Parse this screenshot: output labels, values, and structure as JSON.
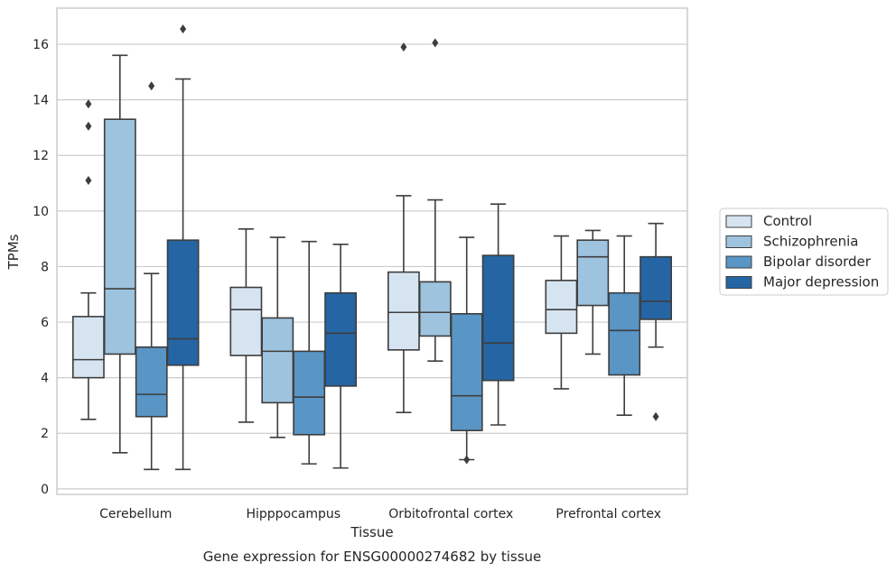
{
  "caption": "Gene expression for ENSG00000274682 by tissue",
  "chart_data": {
    "type": "boxplot",
    "xlabel": "Tissue",
    "ylabel": "TPMs",
    "ylim": [
      -0.2,
      17.3
    ],
    "yticks": [
      0,
      2,
      4,
      6,
      8,
      10,
      12,
      14,
      16
    ],
    "grid": "horizontal",
    "legend_position": "right",
    "categories": [
      "Cerebellum",
      "Hipppocampus",
      "Orbitofrontal cortex",
      "Prefrontal cortex"
    ],
    "series": [
      {
        "name": "Control",
        "color": "#d6e4f2",
        "boxes": [
          {
            "whislo": 2.5,
            "q1": 4.0,
            "med": 4.65,
            "q3": 6.2,
            "whishi": 7.05,
            "fliers": [
              11.1,
              13.05,
              13.85
            ]
          },
          {
            "whislo": 2.4,
            "q1": 4.8,
            "med": 6.45,
            "q3": 7.25,
            "whishi": 9.35,
            "fliers": []
          },
          {
            "whislo": 2.75,
            "q1": 5.0,
            "med": 6.35,
            "q3": 7.8,
            "whishi": 10.55,
            "fliers": [
              15.9
            ]
          },
          {
            "whislo": 3.6,
            "q1": 5.6,
            "med": 6.45,
            "q3": 7.5,
            "whishi": 9.1,
            "fliers": []
          }
        ]
      },
      {
        "name": "Schizophrenia",
        "color": "#9ec3de",
        "boxes": [
          {
            "whislo": 1.3,
            "q1": 4.85,
            "med": 7.2,
            "q3": 13.3,
            "whishi": 15.6,
            "fliers": []
          },
          {
            "whislo": 1.85,
            "q1": 3.1,
            "med": 4.95,
            "q3": 6.15,
            "whishi": 9.05,
            "fliers": []
          },
          {
            "whislo": 4.6,
            "q1": 5.5,
            "med": 6.35,
            "q3": 7.45,
            "whishi": 10.4,
            "fliers": [
              16.05
            ]
          },
          {
            "whislo": 4.85,
            "q1": 6.6,
            "med": 8.35,
            "q3": 8.95,
            "whishi": 9.3,
            "fliers": []
          }
        ]
      },
      {
        "name": "Bipolar disorder",
        "color": "#5995c5",
        "boxes": [
          {
            "whislo": 0.7,
            "q1": 2.6,
            "med": 3.4,
            "q3": 5.1,
            "whishi": 7.75,
            "fliers": [
              14.5
            ]
          },
          {
            "whislo": 0.9,
            "q1": 1.95,
            "med": 3.3,
            "q3": 4.95,
            "whishi": 8.9,
            "fliers": []
          },
          {
            "whislo": 1.05,
            "q1": 2.1,
            "med": 3.35,
            "q3": 6.3,
            "whishi": 9.05,
            "fliers": [
              1.05
            ]
          },
          {
            "whislo": 2.65,
            "q1": 4.1,
            "med": 5.7,
            "q3": 7.05,
            "whishi": 9.1,
            "fliers": []
          }
        ]
      },
      {
        "name": "Major depression",
        "color": "#2565a4",
        "boxes": [
          {
            "whislo": 0.7,
            "q1": 4.45,
            "med": 5.4,
            "q3": 8.95,
            "whishi": 14.75,
            "fliers": [
              16.55
            ]
          },
          {
            "whislo": 0.75,
            "q1": 3.7,
            "med": 5.6,
            "q3": 7.05,
            "whishi": 8.8,
            "fliers": []
          },
          {
            "whislo": 2.3,
            "q1": 3.9,
            "med": 5.25,
            "q3": 8.4,
            "whishi": 10.25,
            "fliers": []
          },
          {
            "whislo": 5.1,
            "q1": 6.1,
            "med": 6.75,
            "q3": 8.35,
            "whishi": 9.55,
            "fliers": [
              2.6
            ]
          }
        ]
      }
    ]
  }
}
